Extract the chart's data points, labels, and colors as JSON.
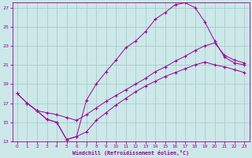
{
  "xlabel": "Windchill (Refroidissement éolien,°C)",
  "background_color": "#cce8e8",
  "grid_color": "#aacccc",
  "line_color": "#990099",
  "xlim": [
    -0.5,
    23.5
  ],
  "ylim": [
    13,
    27.5
  ],
  "yticks": [
    13,
    15,
    17,
    19,
    21,
    23,
    25,
    27
  ],
  "xticks": [
    0,
    1,
    2,
    3,
    4,
    5,
    6,
    7,
    8,
    9,
    10,
    11,
    12,
    13,
    14,
    15,
    16,
    17,
    18,
    19,
    20,
    21,
    22,
    23
  ],
  "curve1_x": [
    0,
    1,
    2,
    3,
    4,
    5,
    6,
    7,
    8,
    9,
    10,
    11,
    12,
    13,
    14,
    15,
    16,
    17,
    18,
    19,
    20,
    21,
    22,
    23
  ],
  "curve1_y": [
    18.0,
    17.0,
    16.2,
    15.3,
    15.0,
    13.2,
    13.5,
    17.3,
    19.0,
    20.3,
    21.5,
    22.8,
    23.5,
    24.5,
    25.8,
    26.5,
    27.3,
    27.5,
    27.0,
    25.5,
    23.5,
    21.8,
    21.2,
    21.0
  ],
  "curve2_x": [
    1,
    2,
    3,
    4,
    5,
    6,
    7,
    8,
    9,
    10,
    11,
    12,
    13,
    14,
    15,
    16,
    17,
    18,
    19,
    20,
    21,
    22,
    23
  ],
  "curve2_y": [
    17.0,
    16.2,
    16.0,
    15.8,
    15.5,
    15.2,
    15.8,
    16.5,
    17.2,
    17.8,
    18.4,
    19.0,
    19.6,
    20.3,
    20.8,
    21.4,
    21.9,
    22.5,
    23.0,
    23.3,
    22.0,
    21.5,
    21.2
  ],
  "curve3_x": [
    0,
    1,
    2,
    3,
    4,
    5,
    6,
    7,
    8,
    9,
    10,
    11,
    12,
    13,
    14,
    15,
    16,
    17,
    18,
    19,
    20,
    21,
    22,
    23
  ],
  "curve3_y": [
    18.0,
    17.0,
    16.2,
    15.3,
    15.0,
    13.2,
    13.5,
    14.0,
    15.2,
    16.0,
    16.8,
    17.5,
    18.2,
    18.8,
    19.3,
    19.8,
    20.2,
    20.6,
    21.0,
    21.3,
    21.0,
    20.8,
    20.5,
    20.2
  ]
}
